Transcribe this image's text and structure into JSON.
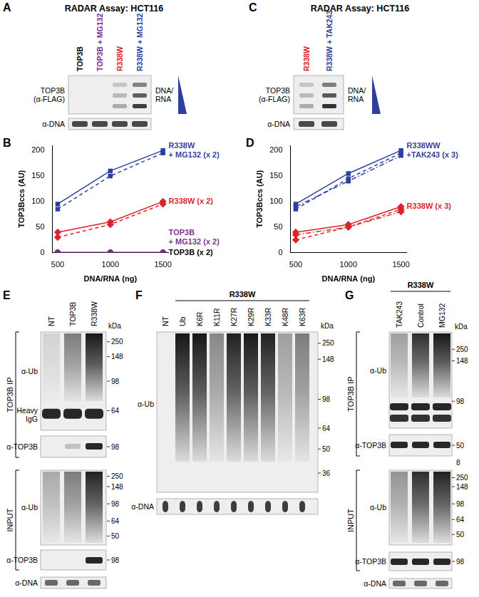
{
  "panels": {
    "A": {
      "letter": "A",
      "title": "RADAR Assay: HCT116",
      "lanes": [
        {
          "label": "TOP3B",
          "color": "#000000"
        },
        {
          "label": "TOP3B + MG132",
          "color": "#7b2d8e"
        },
        {
          "label": "R338W",
          "color": "#e0202a"
        },
        {
          "label": "R338W + MG132",
          "color": "#2e3f9e"
        }
      ],
      "rows": [
        "TOP3B (α-FLAG)",
        "α-DNA"
      ],
      "side_label": "DNA/ RNA"
    },
    "B": {
      "letter": "B"
    },
    "C": {
      "letter": "C",
      "title": "RADAR Assay: HCT116",
      "lanes": [
        {
          "label": "R338W",
          "color": "#e0202a"
        },
        {
          "label": "R338W + TAK243",
          "color": "#2e3f9e"
        }
      ],
      "rows": [
        "TOP3B (α-FLAG)",
        "α-DNA"
      ],
      "side_label": "DNA/ RNA"
    },
    "D": {
      "letter": "D"
    },
    "E": {
      "letter": "E",
      "lanes": [
        "NT",
        "TOP3B",
        "R338W"
      ],
      "unit": "kDa",
      "groups": [
        {
          "label": "TOP3B IP",
          "blots": [
            {
              "label": "α-Ub",
              "inner_label": "Heavy IgG",
              "markers": [
                250,
                148,
                98,
                64
              ]
            },
            {
              "label": "α-TOP3B",
              "markers": [
                98
              ]
            }
          ]
        },
        {
          "label": "INPUT",
          "blots": [
            {
              "label": "α-Ub",
              "markers": [
                250,
                148,
                98,
                64,
                50
              ]
            },
            {
              "label": "α-TOP3B",
              "markers": [
                98
              ]
            }
          ]
        }
      ],
      "after": [
        {
          "label": "α-DNA"
        }
      ]
    },
    "F": {
      "letter": "F",
      "group": "R338W",
      "lanes": [
        "NT",
        "Ub",
        "K6R",
        "K11R",
        "K27R",
        "K29R",
        "K33R",
        "K48R",
        "K63R"
      ],
      "unit": "kDa",
      "blots": [
        {
          "label": "α-Ub",
          "markers": [
            250,
            148,
            98,
            64,
            50,
            36
          ]
        },
        {
          "label": "α-DNA"
        }
      ]
    },
    "G": {
      "letter": "G",
      "group": "R338W",
      "lanes": [
        "TAK243",
        "Control",
        "MG132"
      ],
      "unit": "kDa",
      "groups": [
        {
          "label": "TOP3B IP",
          "blots": [
            {
              "label": "α-Ub",
              "markers": [
                250,
                148,
                98
              ]
            },
            {
              "label": "α-TOP3B",
              "markers": [
                50
              ]
            }
          ]
        },
        {
          "label": "INPUT",
          "blots": [
            {
              "label": "α-Ub",
              "markers": [
                250,
                148,
                98,
                64,
                50
              ]
            },
            {
              "label": "α-TOP3B",
              "markers": [
                98
              ]
            }
          ]
        }
      ],
      "after": [
        {
          "label": "α-DNA"
        }
      ],
      "stray_mark": 8
    }
  },
  "chart_data": [
    {
      "type": "line",
      "x": [
        500,
        1000,
        1500
      ],
      "xlim": [
        450,
        1550
      ],
      "xticks": [
        500,
        1000,
        1500
      ],
      "ylim": [
        0,
        210
      ],
      "yticks": [
        0,
        50,
        100,
        150,
        200
      ],
      "x_label": "DNA/RNA (ng)",
      "y_label": "TOP3Bccs (AU)",
      "grid": false,
      "series": [
        {
          "name": "R338W + MG132 (x 2)",
          "color": "#2e3f9e",
          "marker": "square",
          "line_style": "solid",
          "values": [
            95,
            160,
            200
          ]
        },
        {
          "color": "#2e3f9e",
          "marker": "square",
          "line_style": "dashed",
          "values": [
            85,
            150,
            195
          ]
        },
        {
          "name": "R338W (x 2)",
          "color": "#e0202a",
          "marker": "diamond",
          "line_style": "solid",
          "values": [
            40,
            60,
            100
          ]
        },
        {
          "color": "#e0202a",
          "marker": "diamond",
          "line_style": "dashed",
          "values": [
            30,
            55,
            95
          ]
        },
        {
          "name": "TOP3B + MG132 (x 2)",
          "color": "#7b2d8e",
          "marker": "circle",
          "line_style": "solid",
          "values": [
            0,
            0,
            0
          ]
        },
        {
          "name": "TOP3B (x 2)",
          "color": "#000000",
          "marker": "circle",
          "line_style": "solid",
          "values": [
            0,
            0,
            0
          ]
        }
      ]
    },
    {
      "type": "line",
      "x": [
        500,
        1000,
        1500
      ],
      "xlim": [
        450,
        1550
      ],
      "xticks": [
        500,
        1000,
        1500
      ],
      "ylim": [
        0,
        210
      ],
      "yticks": [
        0,
        50,
        100,
        150,
        200
      ],
      "x_label": "DNA/RNA (ng)",
      "y_label": "TOP3Bccs (AU)",
      "grid": false,
      "series": [
        {
          "name": "R338WW +TAK243 (x 3)",
          "color": "#2e3f9e",
          "marker": "square",
          "line_style": "solid",
          "values": [
            95,
            155,
            200
          ]
        },
        {
          "color": "#2e3f9e",
          "marker": "square",
          "line_style": "dashed",
          "values": [
            85,
            145,
            195
          ]
        },
        {
          "color": "#2e3f9e",
          "marker": "square",
          "line_style": "dashdot",
          "values": [
            90,
            140,
            190
          ]
        },
        {
          "name": "R338W (x 3)",
          "color": "#e0202a",
          "marker": "diamond",
          "line_style": "solid",
          "values": [
            40,
            55,
            90
          ]
        },
        {
          "color": "#e0202a",
          "marker": "diamond",
          "line_style": "dashed",
          "values": [
            25,
            50,
            85
          ]
        },
        {
          "color": "#e0202a",
          "marker": "diamond",
          "line_style": "dashdot",
          "values": [
            35,
            50,
            80
          ]
        }
      ]
    }
  ]
}
